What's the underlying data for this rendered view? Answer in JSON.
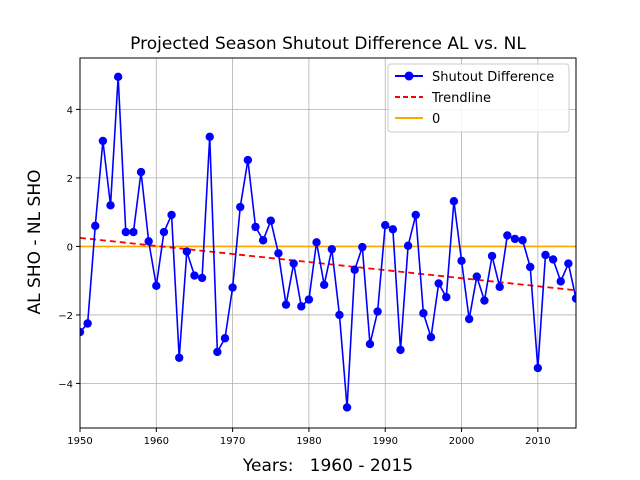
{
  "chart_data": {
    "type": "line",
    "title": "Projected Season Shutout Difference AL vs. NL",
    "xlabel": "Years:   1960 - 2015",
    "ylabel": "AL SHO - NL SHO",
    "xlim": [
      1950,
      2015
    ],
    "ylim": [
      -5.3,
      5.5
    ],
    "xticks": [
      1950,
      1960,
      1970,
      1980,
      1990,
      2000,
      2010
    ],
    "yticks": [
      -4,
      -2,
      0,
      2,
      4
    ],
    "grid": true,
    "legend_position": "top-right",
    "series": [
      {
        "name": "Shutout Difference",
        "color": "#0000ff",
        "style": "line-with-circle-markers",
        "x": [
          1950,
          1951,
          1952,
          1953,
          1954,
          1955,
          1956,
          1957,
          1958,
          1959,
          1960,
          1961,
          1962,
          1963,
          1964,
          1965,
          1966,
          1967,
          1968,
          1969,
          1970,
          1971,
          1972,
          1973,
          1974,
          1975,
          1976,
          1977,
          1978,
          1979,
          1980,
          1981,
          1982,
          1983,
          1984,
          1985,
          1986,
          1987,
          1988,
          1989,
          1990,
          1991,
          1992,
          1993,
          1994,
          1995,
          1996,
          1997,
          1998,
          1999,
          2000,
          2001,
          2002,
          2003,
          2004,
          2005,
          2006,
          2007,
          2008,
          2009,
          2010,
          2011,
          2012,
          2013,
          2014,
          2015
        ],
        "y": [
          -2.5,
          -2.25,
          0.6,
          3.08,
          1.2,
          4.95,
          0.42,
          0.42,
          2.17,
          0.15,
          -1.15,
          0.42,
          0.92,
          -3.25,
          -0.15,
          -0.85,
          -0.92,
          3.2,
          -3.08,
          -2.68,
          -1.2,
          1.15,
          2.52,
          0.57,
          0.18,
          0.75,
          -0.2,
          -1.7,
          -0.5,
          -1.75,
          -1.55,
          0.12,
          -1.12,
          -0.08,
          -2.0,
          -4.7,
          -0.68,
          -0.02,
          -2.85,
          -1.9,
          0.62,
          0.5,
          -3.02,
          0.02,
          0.92,
          -1.95,
          -2.65,
          -1.08,
          -1.48,
          1.32,
          -0.42,
          -2.12,
          -0.88,
          -1.58,
          -0.28,
          -1.18,
          0.32,
          0.22,
          0.18,
          -0.6,
          -3.55,
          -0.25,
          -0.38,
          -1.02,
          -0.5,
          -1.52
        ]
      },
      {
        "name": "Trendline",
        "color": "#ff0000",
        "style": "dashed",
        "x": [
          1950,
          2015
        ],
        "y": [
          0.25,
          -1.28
        ]
      },
      {
        "name": "0",
        "color": "#ffa500",
        "style": "solid",
        "x": [
          1950,
          2015
        ],
        "y": [
          0,
          0
        ]
      }
    ]
  }
}
